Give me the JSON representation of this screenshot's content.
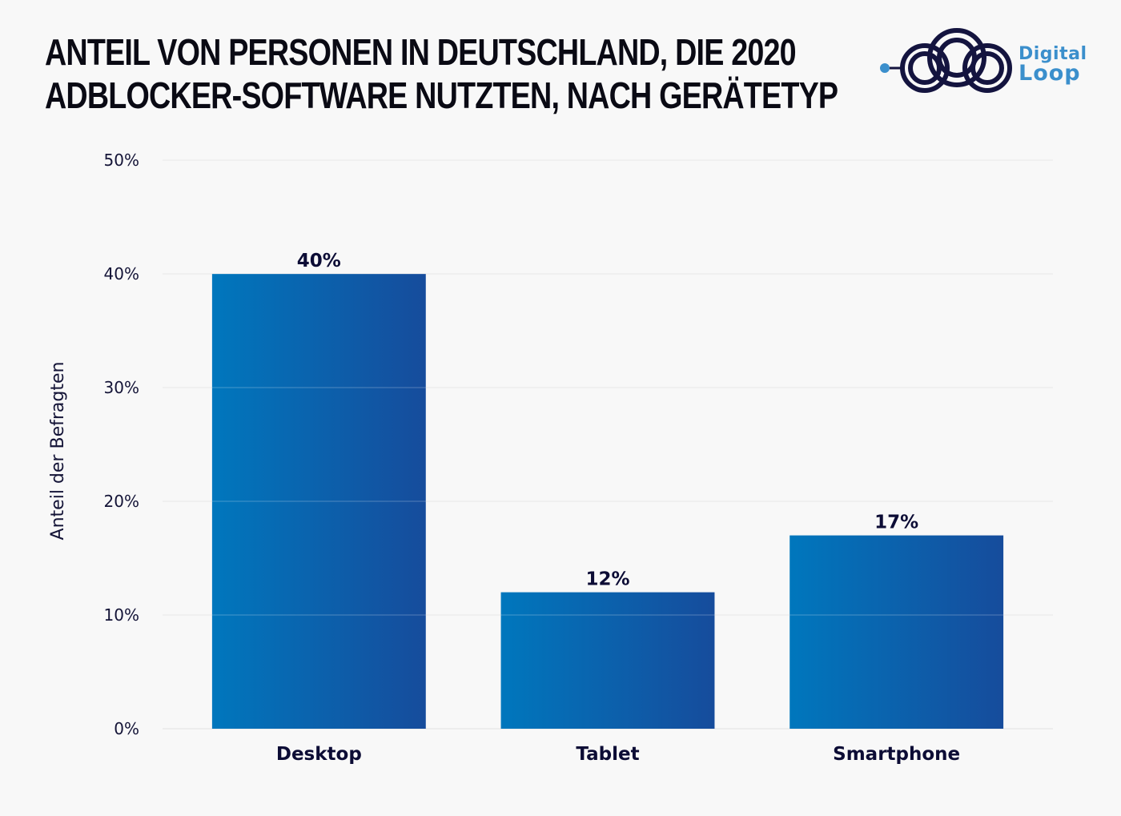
{
  "header": {
    "title_lines": [
      "ANTEIL VON PERSONEN IN DEUTSCHLAND, DIE 2020",
      "ADBLOCKER-SOFTWARE NUTZTEN, NACH GERÄTETYP"
    ]
  },
  "logo": {
    "line1": "Digital",
    "line2": "Loop",
    "icon": "interlocking-rings-logo-icon"
  },
  "colors": {
    "bar_start": "#0077bd",
    "bar_end": "#164c9c",
    "text_dark": "#0c0c35",
    "logo_navy": "#14143f",
    "logo_blue": "#3b8fcc",
    "grid": "#e6e6e6"
  },
  "chart_data": {
    "type": "bar",
    "title": "ANTEIL VON PERSONEN IN DEUTSCHLAND, DIE 2020 ADBLOCKER-SOFTWARE NUTZTEN, NACH GERÄTETYP",
    "categories": [
      "Desktop",
      "Tablet",
      "Smartphone"
    ],
    "values": [
      40,
      12,
      17
    ],
    "data_labels": [
      "40%",
      "12%",
      "17%"
    ],
    "xlabel": "",
    "ylabel": "Anteil der Befragten",
    "ylim": [
      0,
      50
    ],
    "yticks": [
      0,
      10,
      20,
      30,
      40,
      50
    ],
    "ytick_labels": [
      "0%",
      "10%",
      "20%",
      "30%",
      "40%",
      "50%"
    ],
    "grid": true,
    "legend": "none"
  }
}
